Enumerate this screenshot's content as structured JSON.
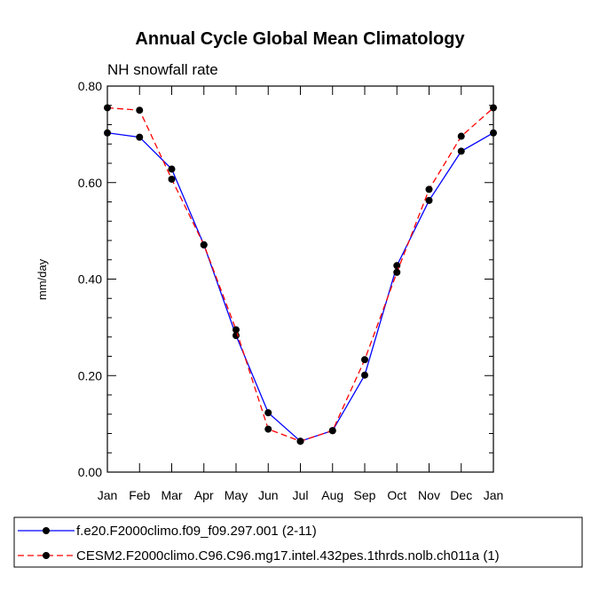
{
  "chart_data": {
    "type": "line",
    "title": "Annual Cycle Global Mean Climatology",
    "subtitle": "NH snowfall rate",
    "xlabel": "",
    "ylabel": "mm/day",
    "categories": [
      "Jan",
      "Feb",
      "Mar",
      "Apr",
      "May",
      "Jun",
      "Jul",
      "Aug",
      "Sep",
      "Oct",
      "Nov",
      "Dec",
      "Jan"
    ],
    "ylim": [
      0.0,
      0.8
    ],
    "yticks": [
      0.0,
      0.2,
      0.4,
      0.6,
      0.8
    ],
    "ytick_labels": [
      "0.00",
      "0.20",
      "0.40",
      "0.60",
      "0.80"
    ],
    "grid": false,
    "legend_position": "bottom",
    "series": [
      {
        "name": "f.e20.F2000climo.f09_f09.297.001 (2-11)",
        "color": "#0000ff",
        "dash": "solid",
        "values": [
          0.703,
          0.694,
          0.628,
          0.471,
          0.283,
          0.123,
          0.064,
          0.086,
          0.201,
          0.428,
          0.563,
          0.665,
          0.703
        ]
      },
      {
        "name": "CESM2.F2000climo.C96.C96.mg17.intel.432pes.1thrds.nolb.ch011a (1)",
        "color": "#ff0000",
        "dash": "dashed",
        "values": [
          0.755,
          0.75,
          0.607,
          0.471,
          0.295,
          0.089,
          0.064,
          0.086,
          0.233,
          0.414,
          0.586,
          0.696,
          0.755
        ]
      }
    ]
  }
}
